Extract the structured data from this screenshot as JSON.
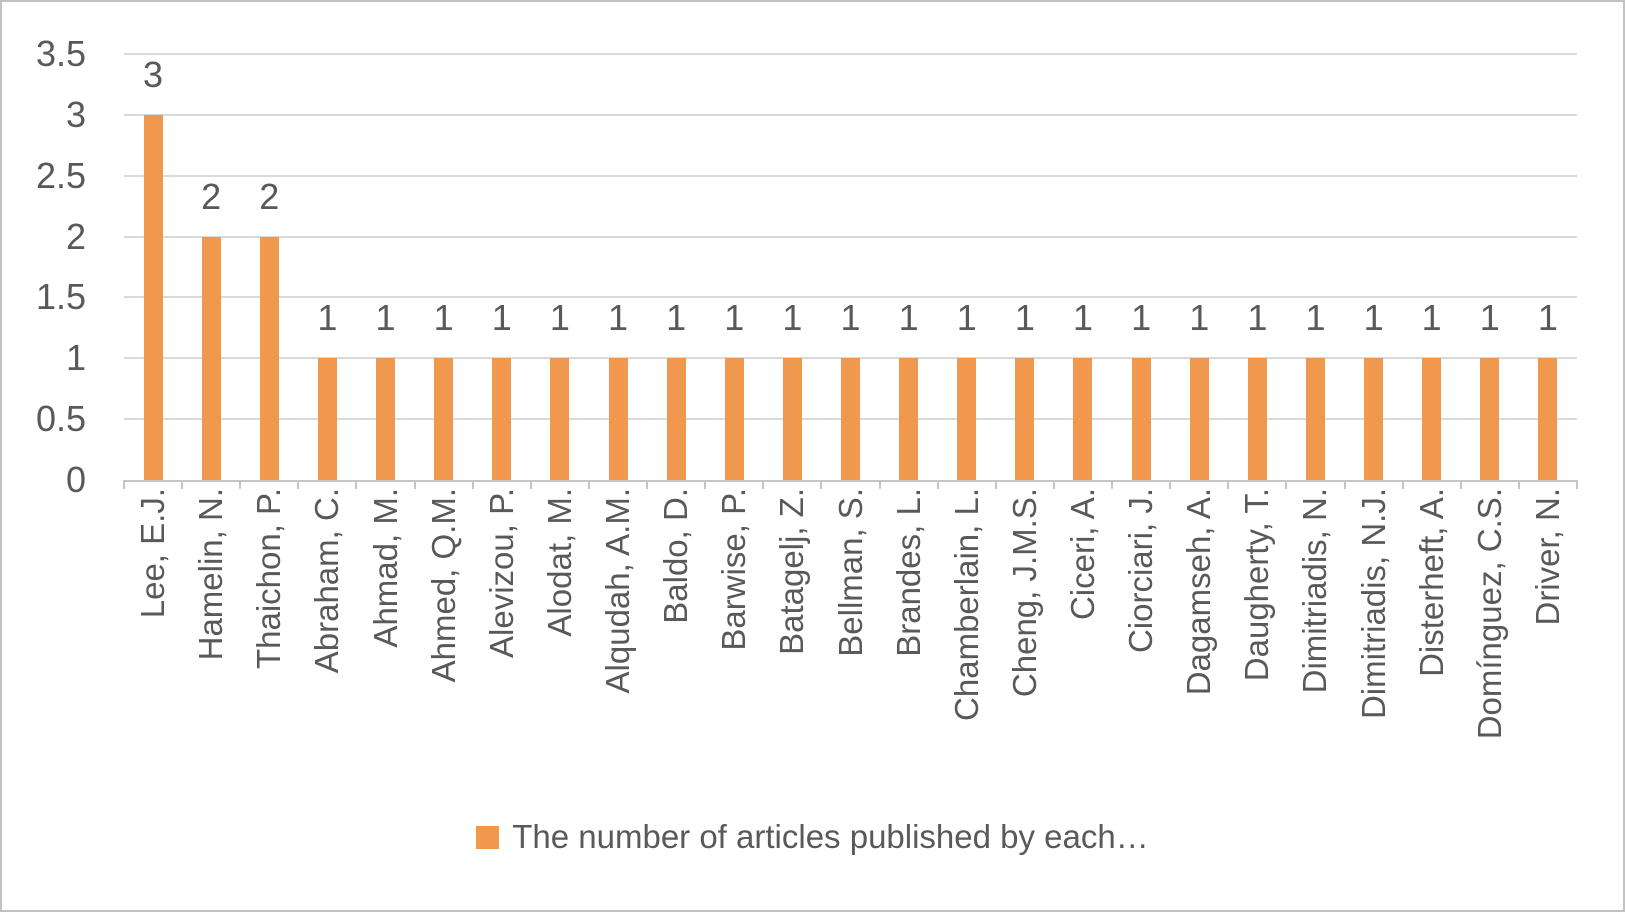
{
  "chart_data": {
    "type": "bar",
    "title": "",
    "xlabel": "",
    "ylabel": "",
    "categories": [
      "Lee, E.J.",
      "Hamelin, N.",
      "Thaichon, P.",
      "Abraham, C.",
      "Ahmad, M.",
      "Ahmed, Q.M.",
      "Alevizou, P.",
      "Alodat, M.",
      "Alqudah, A.M.",
      "Baldo, D.",
      "Barwise, P.",
      "Batagelj, Z.",
      "Bellman, S.",
      "Brandes, L.",
      "Chamberlain, L.",
      "Cheng, J.M.S.",
      "Ciceri, A.",
      "Ciorciari, J.",
      "Dagamseh, A.",
      "Daugherty, T.",
      "Dimitriadis, N.",
      "Dimitriadis, N.J.",
      "Disterheft, A.",
      "Domínguez, C.S.",
      "Driver, N."
    ],
    "values": [
      3,
      2,
      2,
      1,
      1,
      1,
      1,
      1,
      1,
      1,
      1,
      1,
      1,
      1,
      1,
      1,
      1,
      1,
      1,
      1,
      1,
      1,
      1,
      1,
      1
    ],
    "data_labels_shown": true,
    "series_label": "The number of articles published by each…",
    "legend_position": "bottom",
    "grid": true,
    "ylim": [
      0,
      3.5
    ],
    "ytick_labels": [
      "0",
      "0.5",
      "1",
      "1.5",
      "2",
      "2.5",
      "3",
      "3.5"
    ]
  },
  "colors": {
    "bar": "#F0994E",
    "grid": "#D9D9D9",
    "axis": "#C6C6C6",
    "tick": "#C6C6C6",
    "text": "#595959"
  }
}
